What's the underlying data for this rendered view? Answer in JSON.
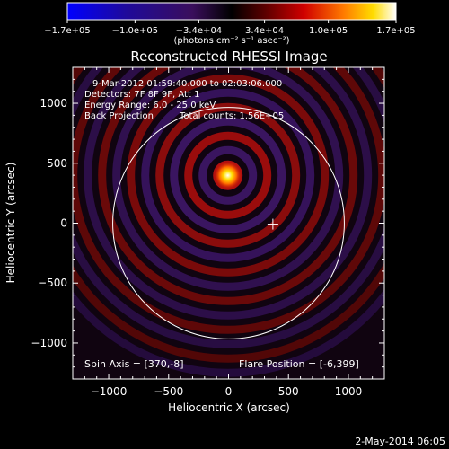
{
  "chart_data": {
    "type": "heatmap",
    "title": "Reconstructed RHESSI Image",
    "xlabel": "Heliocentric X (arcsec)",
    "ylabel": "Heliocentric Y (arcsec)",
    "xlim": [
      -1300,
      1300
    ],
    "ylim": [
      -1300,
      1300
    ],
    "xticks": [
      -1000,
      -500,
      0,
      500,
      1000
    ],
    "yticks": [
      -1000,
      -500,
      0,
      500,
      1000
    ],
    "xtick_labels": [
      "−1000",
      "−500",
      "0",
      "500",
      "1000"
    ],
    "ytick_labels": [
      "1000",
      "500",
      "0",
      "−500",
      "−1000"
    ],
    "colorbar": {
      "range": [
        -170000,
        170000
      ],
      "tick_values": [
        -170000,
        -100000,
        -34000,
        34000,
        100000,
        170000
      ],
      "tick_labels": [
        "−1.7e+05",
        "−1.0e+05",
        "−3.4e+04",
        "3.4e+04",
        "1.0e+05",
        "1.7e+05"
      ],
      "unit_label": "(photons cm⁻² s⁻¹ asec⁻²)",
      "colormap": [
        "#0000ff",
        "#1b0a8a",
        "#3b1070",
        "#000000",
        "#6b0000",
        "#d40000",
        "#ff8a00",
        "#ffe000",
        "#ffffff"
      ]
    },
    "annotations": {
      "line1": "9-Mar-2012 01:59:40.000 to 02:03:06.000",
      "line2": "Detectors: 7F 8F 9F, Att 1",
      "line3": "Energy Range: 6.0 - 25.0 keV",
      "line4_left": "Back Projection",
      "line4_right": "Total counts: 1.56E+05",
      "spin_axis": "Spin Axis = [370,-8]",
      "flare_position": "Flare Position = [-6,399]"
    },
    "source_peak": {
      "x": -6,
      "y": 399
    },
    "spin_axis_point": {
      "x": 370,
      "y": -8
    },
    "solar_limb_radius_arcsec": 966,
    "grid": false
  },
  "footer": {
    "date": "2-May-2014 06:05"
  }
}
